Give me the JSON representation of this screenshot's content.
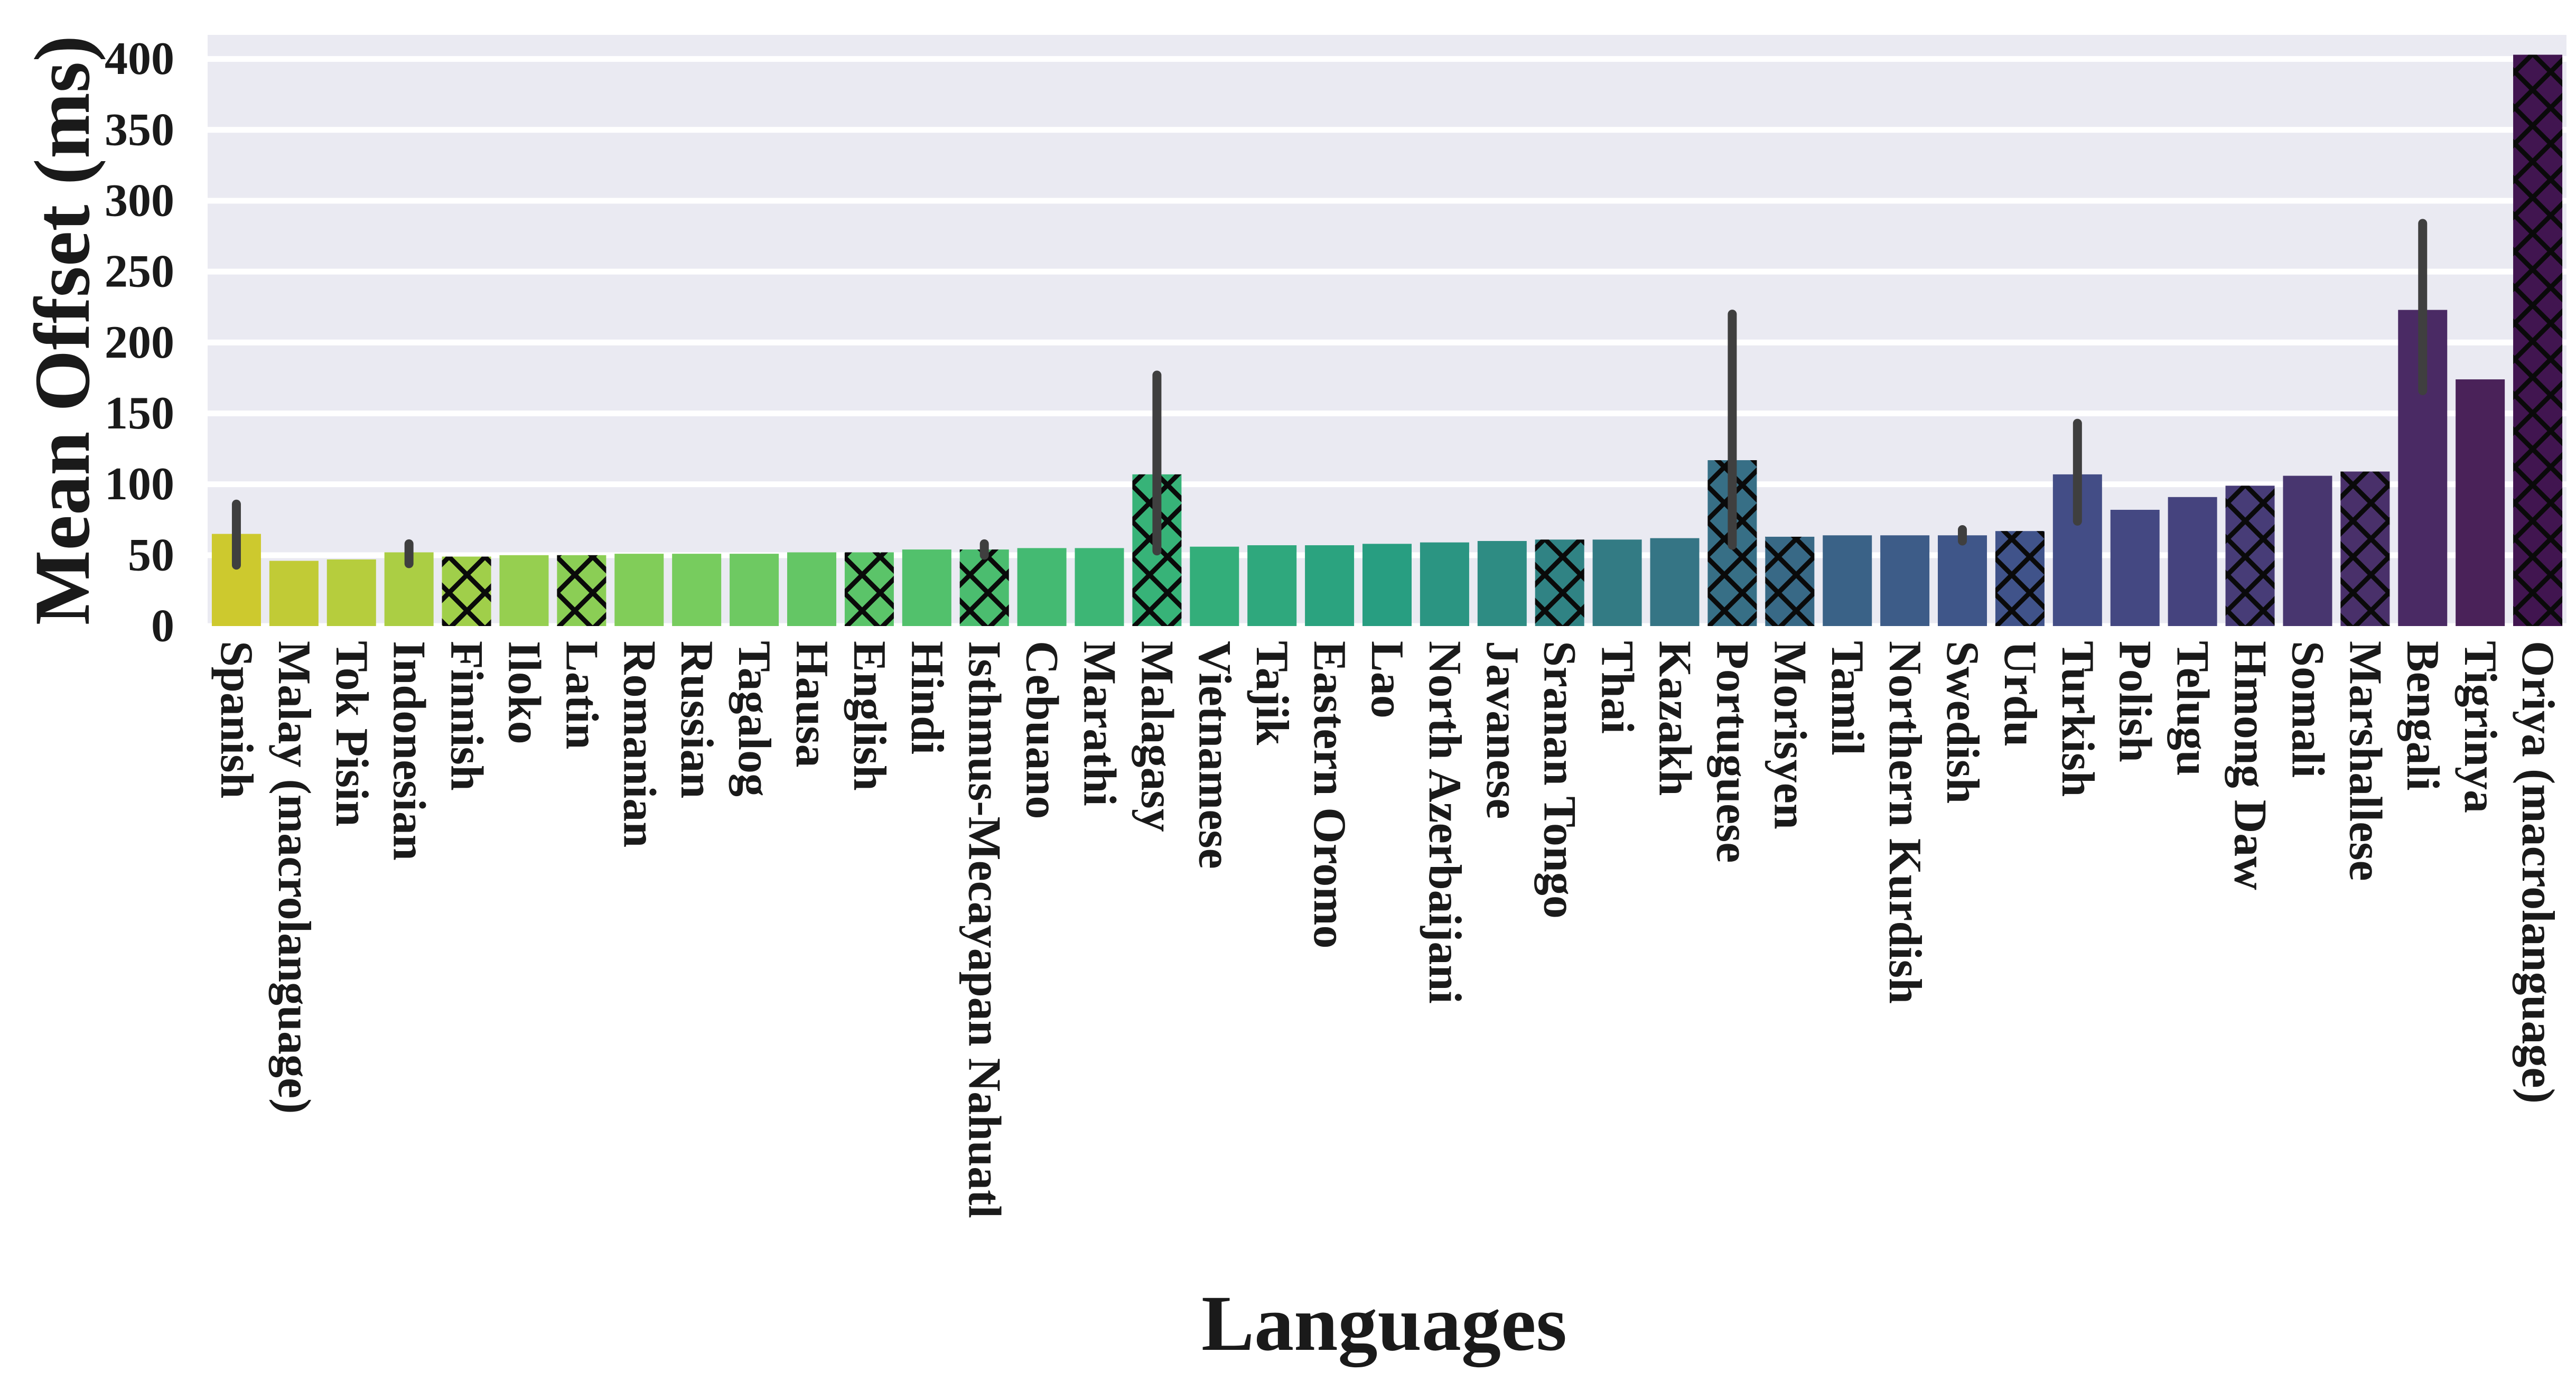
{
  "figure": {
    "background_color": "#ffffff"
  },
  "chart_data": {
    "type": "bar",
    "title": "",
    "xlabel": "Languages",
    "ylabel": "Mean Offset (ms)",
    "ylim": [
      0,
      417
    ],
    "yticks": [
      0,
      50,
      100,
      150,
      200,
      250,
      300,
      350,
      400
    ],
    "legend": "none",
    "grid": "horizontal major gridlines",
    "plot_background": "#eaeaf2",
    "gridline_color": "#ffffff",
    "errorbar_color": "#3f3f3f",
    "hatch_color": "#0a0a0a",
    "tick_label_color": "#1a1a1a",
    "categories": [
      "Spanish",
      "Malay (macrolanguage)",
      "Tok Pisin",
      "Indonesian",
      "Finnish",
      "Iloko",
      "Latin",
      "Romanian",
      "Russian",
      "Tagalog",
      "Hausa",
      "English",
      "Hindi",
      "Isthmus-Mecayapan Nahuatl",
      "Cebuano",
      "Marathi",
      "Malagasy",
      "Vietnamese",
      "Tajik",
      "Eastern Oromo",
      "Lao",
      "North Azerbaijani",
      "Javanese",
      "Sranan Tongo",
      "Thai",
      "Kazakh",
      "Portuguese",
      "Morisyen",
      "Tamil",
      "Northern Kurdish",
      "Swedish",
      "Urdu",
      "Turkish",
      "Polish",
      "Telugu",
      "Hmong Daw",
      "Somali",
      "Marshallese",
      "Bengali",
      "Tigrinya",
      "Oriya (macrolanguage)"
    ],
    "values": [
      65,
      46,
      47,
      52,
      49,
      50,
      50,
      51,
      51,
      51,
      52,
      52,
      54,
      54,
      55,
      55,
      107,
      56,
      57,
      57,
      58,
      59,
      60,
      61,
      61,
      62,
      117,
      63,
      64,
      64,
      64,
      67,
      107,
      82,
      91,
      99,
      106,
      109,
      223,
      174,
      403
    ],
    "errors": [
      [
        43,
        86
      ],
      null,
      null,
      [
        44,
        58
      ],
      null,
      null,
      null,
      null,
      null,
      null,
      null,
      null,
      null,
      [
        50,
        58
      ],
      null,
      null,
      [
        53,
        177
      ],
      null,
      null,
      null,
      null,
      null,
      null,
      null,
      null,
      null,
      [
        57,
        220
      ],
      null,
      null,
      null,
      [
        60,
        68
      ],
      null,
      [
        74,
        143
      ],
      null,
      null,
      null,
      null,
      null,
      [
        166,
        284
      ],
      null,
      null
    ],
    "hatched": [
      false,
      false,
      false,
      false,
      true,
      false,
      true,
      false,
      false,
      false,
      false,
      true,
      false,
      true,
      false,
      false,
      true,
      false,
      false,
      false,
      false,
      false,
      false,
      true,
      false,
      false,
      true,
      true,
      false,
      false,
      false,
      true,
      false,
      false,
      false,
      true,
      false,
      true,
      false,
      false,
      true
    ],
    "bar_colors": [
      "#cdc92e",
      "#c1cb36",
      "#b6cd3d",
      "#abce44",
      "#a0cf4a",
      "#96cf50",
      "#8bce55",
      "#81cd59",
      "#77cc5e",
      "#6ec962",
      "#64c665",
      "#5bc469",
      "#52c16c",
      "#4bbd6f",
      "#44ba72",
      "#3db675",
      "#37b378",
      "#33ae7a",
      "#2fa87d",
      "#2ba37f",
      "#289e81",
      "#2b9582",
      "#2e8c83",
      "#308384",
      "#337b84",
      "#357585",
      "#376f86",
      "#386986",
      "#3a6287",
      "#3d5c88",
      "#3f5689",
      "#40538a",
      "#434d86",
      "#444882",
      "#45437e",
      "#473c77",
      "#48366f",
      "#49306a",
      "#4a2a64",
      "#4a2259",
      "#411550"
    ]
  }
}
